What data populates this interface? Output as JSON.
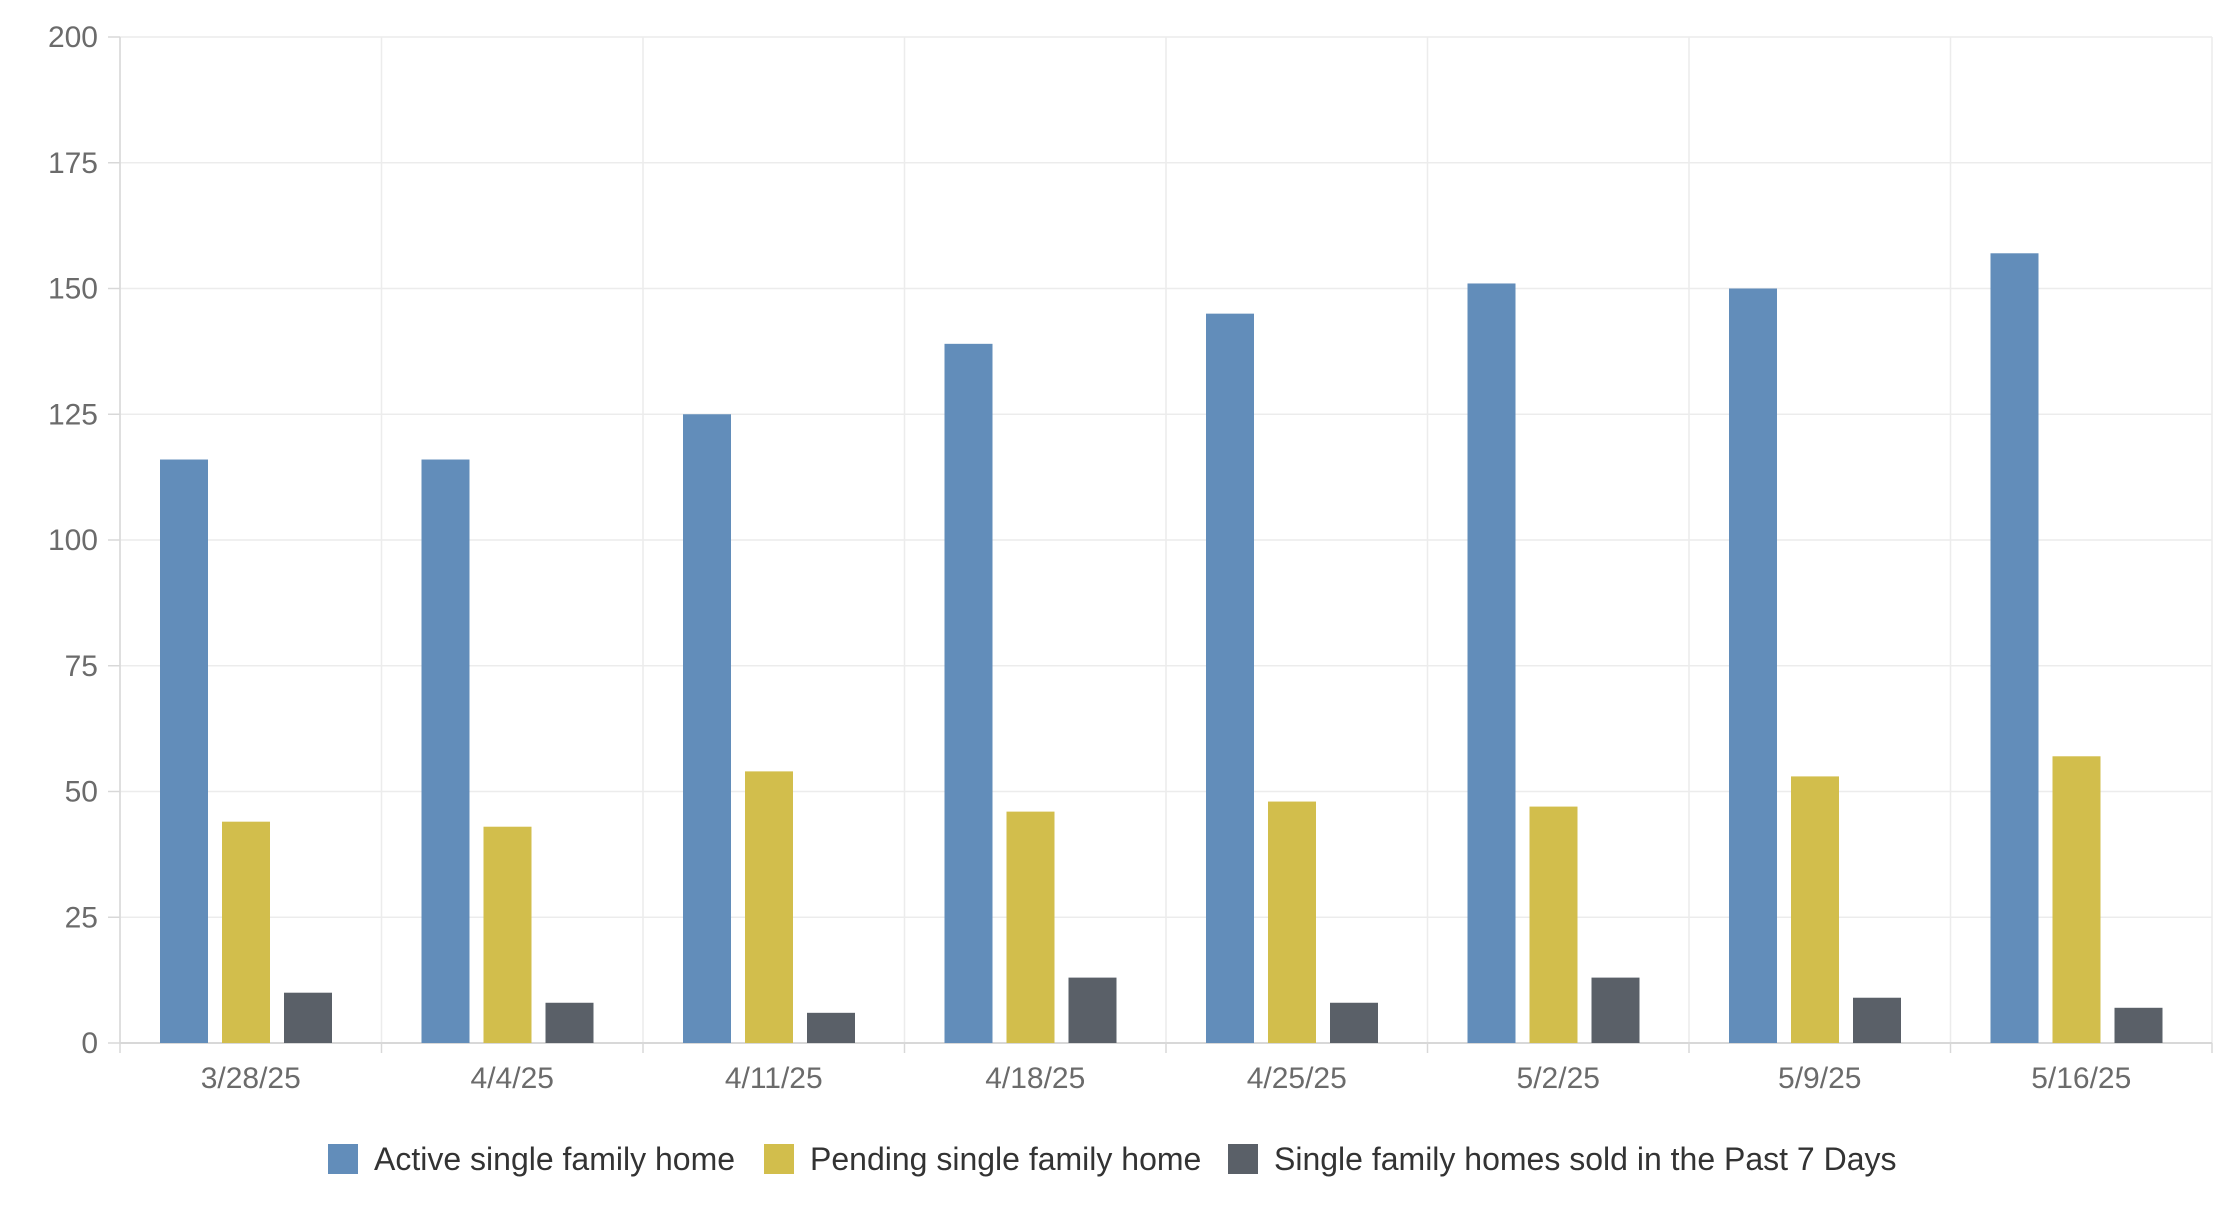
{
  "chart_data": {
    "type": "bar",
    "categories": [
      "3/28/25",
      "4/4/25",
      "4/11/25",
      "4/18/25",
      "4/25/25",
      "5/2/25",
      "5/9/25",
      "5/16/25"
    ],
    "series": [
      {
        "name": "Active single family home",
        "color": "#628dba",
        "values": [
          116,
          116,
          125,
          139,
          145,
          151,
          150,
          157
        ]
      },
      {
        "name": "Pending single family home",
        "color": "#d2be4c",
        "values": [
          44,
          43,
          54,
          46,
          48,
          47,
          53,
          57
        ]
      },
      {
        "name": "Single family homes sold in the Past 7 Days",
        "color": "#5a6068",
        "values": [
          10,
          8,
          6,
          13,
          8,
          13,
          9,
          7
        ]
      }
    ],
    "ylim": [
      0,
      200
    ],
    "yticks": [
      0,
      25,
      50,
      75,
      100,
      125,
      150,
      175,
      200
    ],
    "grid": true,
    "legend_position": "bottom"
  }
}
